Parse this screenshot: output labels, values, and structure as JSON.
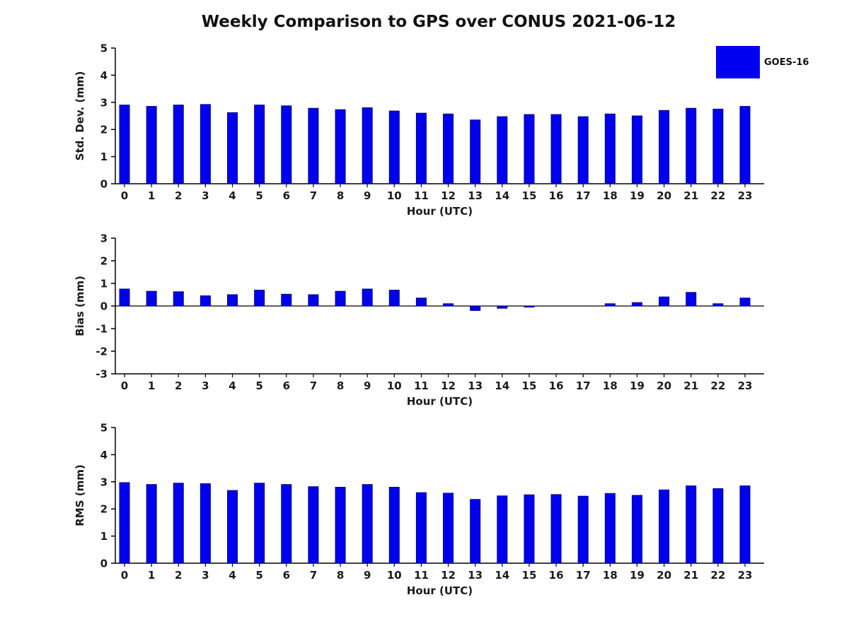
{
  "title": "Weekly Comparison to GPS over CONUS 2021-06-12",
  "legend": {
    "label": "GOES-16",
    "color": "#0000f0"
  },
  "bar_edge_color": "#00008b",
  "chart_data": [
    {
      "type": "bar",
      "name": "std-dev",
      "title": "",
      "ylabel": "Std. Dev. (mm)",
      "xlabel": "Hour (UTC)",
      "ylim": [
        0,
        5
      ],
      "yticks": [
        0,
        1,
        2,
        3,
        4,
        5
      ],
      "categories": [
        "0",
        "1",
        "2",
        "3",
        "4",
        "5",
        "6",
        "7",
        "8",
        "9",
        "10",
        "11",
        "12",
        "13",
        "14",
        "15",
        "16",
        "17",
        "18",
        "19",
        "20",
        "21",
        "22",
        "23"
      ],
      "values": [
        2.9,
        2.85,
        2.9,
        2.92,
        2.62,
        2.9,
        2.87,
        2.78,
        2.73,
        2.8,
        2.68,
        2.6,
        2.57,
        2.35,
        2.47,
        2.55,
        2.55,
        2.47,
        2.57,
        2.5,
        2.7,
        2.78,
        2.75,
        2.85
      ],
      "legend_entries": [
        "GOES-16"
      ],
      "grid": false
    },
    {
      "type": "bar",
      "name": "bias",
      "title": "",
      "ylabel": "Bias (mm)",
      "xlabel": "Hour (UTC)",
      "ylim": [
        -3,
        3
      ],
      "yticks": [
        -3,
        -2,
        -1,
        0,
        1,
        2,
        3
      ],
      "categories": [
        "0",
        "1",
        "2",
        "3",
        "4",
        "5",
        "6",
        "7",
        "8",
        "9",
        "10",
        "11",
        "12",
        "13",
        "14",
        "15",
        "16",
        "17",
        "18",
        "19",
        "20",
        "21",
        "22",
        "23"
      ],
      "values": [
        0.75,
        0.65,
        0.63,
        0.45,
        0.5,
        0.7,
        0.52,
        0.5,
        0.65,
        0.75,
        0.7,
        0.35,
        0.1,
        -0.2,
        -0.1,
        -0.05,
        0,
        0,
        0.1,
        0.15,
        0.4,
        0.6,
        0.1,
        0.35
      ],
      "legend_entries": [
        "GOES-16"
      ],
      "grid": false
    },
    {
      "type": "bar",
      "name": "rms",
      "title": "",
      "ylabel": "RMS (mm)",
      "xlabel": "Hour (UTC)",
      "ylim": [
        0,
        5
      ],
      "yticks": [
        0,
        1,
        2,
        3,
        4,
        5
      ],
      "categories": [
        "0",
        "1",
        "2",
        "3",
        "4",
        "5",
        "6",
        "7",
        "8",
        "9",
        "10",
        "11",
        "12",
        "13",
        "14",
        "15",
        "16",
        "17",
        "18",
        "19",
        "20",
        "21",
        "22",
        "23"
      ],
      "values": [
        2.97,
        2.9,
        2.95,
        2.93,
        2.68,
        2.95,
        2.9,
        2.82,
        2.8,
        2.9,
        2.8,
        2.6,
        2.58,
        2.35,
        2.48,
        2.52,
        2.53,
        2.47,
        2.57,
        2.5,
        2.7,
        2.85,
        2.75,
        2.85
      ],
      "legend_entries": [
        "GOES-16"
      ],
      "grid": false
    }
  ]
}
